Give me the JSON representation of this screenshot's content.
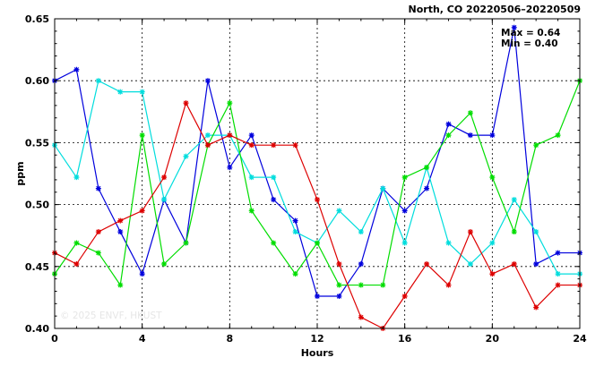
{
  "chart_data": {
    "type": "line",
    "title": "North, CO 20220506–20220509",
    "xlabel": "Hours",
    "ylabel": "ppm",
    "xlim": [
      0,
      24
    ],
    "ylim": [
      0.4,
      0.65
    ],
    "x_ticks": [
      0,
      4,
      8,
      12,
      16,
      20,
      24
    ],
    "y_ticks": [
      0.4,
      0.45,
      0.5,
      0.55,
      0.6,
      0.65
    ],
    "grid": true,
    "annotations": {
      "max": "Max = 0.64",
      "min": "Min = 0.40"
    },
    "watermark": "© 2025 ENVF, HKUST",
    "x": [
      0,
      1,
      2,
      3,
      4,
      5,
      6,
      7,
      8,
      9,
      10,
      11,
      12,
      13,
      14,
      15,
      16,
      17,
      18,
      19,
      20,
      21,
      22,
      23,
      24
    ],
    "series": [
      {
        "color": "#0000dd",
        "values": [
          0.6,
          0.609,
          0.513,
          0.478,
          0.444,
          0.504,
          0.469,
          0.6,
          0.53,
          0.556,
          0.504,
          0.487,
          0.426,
          0.426,
          0.452,
          0.513,
          0.495,
          0.513,
          0.565,
          0.556,
          0.556,
          0.643,
          0.452,
          0.461,
          0.461
        ]
      },
      {
        "color": "#00dddd",
        "values": [
          0.548,
          0.522,
          0.6,
          0.591,
          0.591,
          0.504,
          0.539,
          0.556,
          0.556,
          0.522,
          0.522,
          0.478,
          0.469,
          0.495,
          0.478,
          0.513,
          0.469,
          0.53,
          0.469,
          0.452,
          0.469,
          0.504,
          0.478,
          0.444,
          0.444
        ]
      },
      {
        "color": "#00dd00",
        "values": [
          0.444,
          0.469,
          0.461,
          0.435,
          0.556,
          0.452,
          0.469,
          0.548,
          0.582,
          0.495,
          0.469,
          0.444,
          0.469,
          0.435,
          0.435,
          0.435,
          0.522,
          0.53,
          0.556,
          0.574,
          0.522,
          0.478,
          0.548,
          0.556,
          0.6
        ]
      },
      {
        "color": "#dd0000",
        "values": [
          0.461,
          0.452,
          0.478,
          0.487,
          0.495,
          0.522,
          0.582,
          0.548,
          0.556,
          0.548,
          0.548,
          0.548,
          0.504,
          0.452,
          0.409,
          0.4,
          0.426,
          0.452,
          0.435,
          0.478,
          0.444,
          0.452,
          0.417,
          0.435,
          0.435
        ]
      }
    ]
  }
}
